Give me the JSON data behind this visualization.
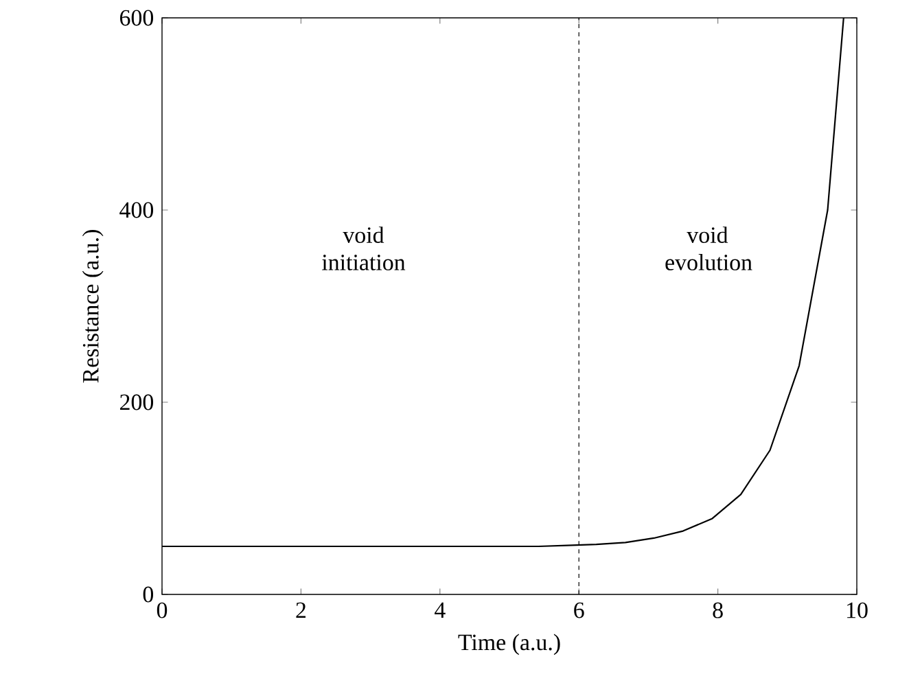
{
  "chart_data": {
    "type": "line",
    "xlabel": "Time (a.u.)",
    "ylabel": "Resistance (a.u.)",
    "x": [
      0,
      2,
      4,
      5,
      5.42,
      5.83,
      6.25,
      6.67,
      7.08,
      7.5,
      7.92,
      8.33,
      8.75,
      9.17,
      9.58,
      9.81
    ],
    "series": [
      {
        "color": "#000000",
        "values": [
          50,
          50,
          50,
          50,
          50,
          51,
          52,
          54,
          58.6,
          66,
          79,
          104,
          150,
          238,
          400,
          600
        ]
      }
    ],
    "xlim": [
      0,
      10
    ],
    "ylim": [
      0,
      600
    ],
    "xticks": [
      0,
      2,
      4,
      6,
      8,
      10
    ],
    "yticks": [
      0,
      200,
      400,
      600
    ],
    "ref_lines": [
      {
        "axis": "x",
        "value": 6,
        "color": "#000000",
        "line_style": "dashed"
      }
    ],
    "annotations": [
      "void initiation",
      "void evolution"
    ],
    "marker": "none",
    "line_style": "solid",
    "grid": false
  }
}
